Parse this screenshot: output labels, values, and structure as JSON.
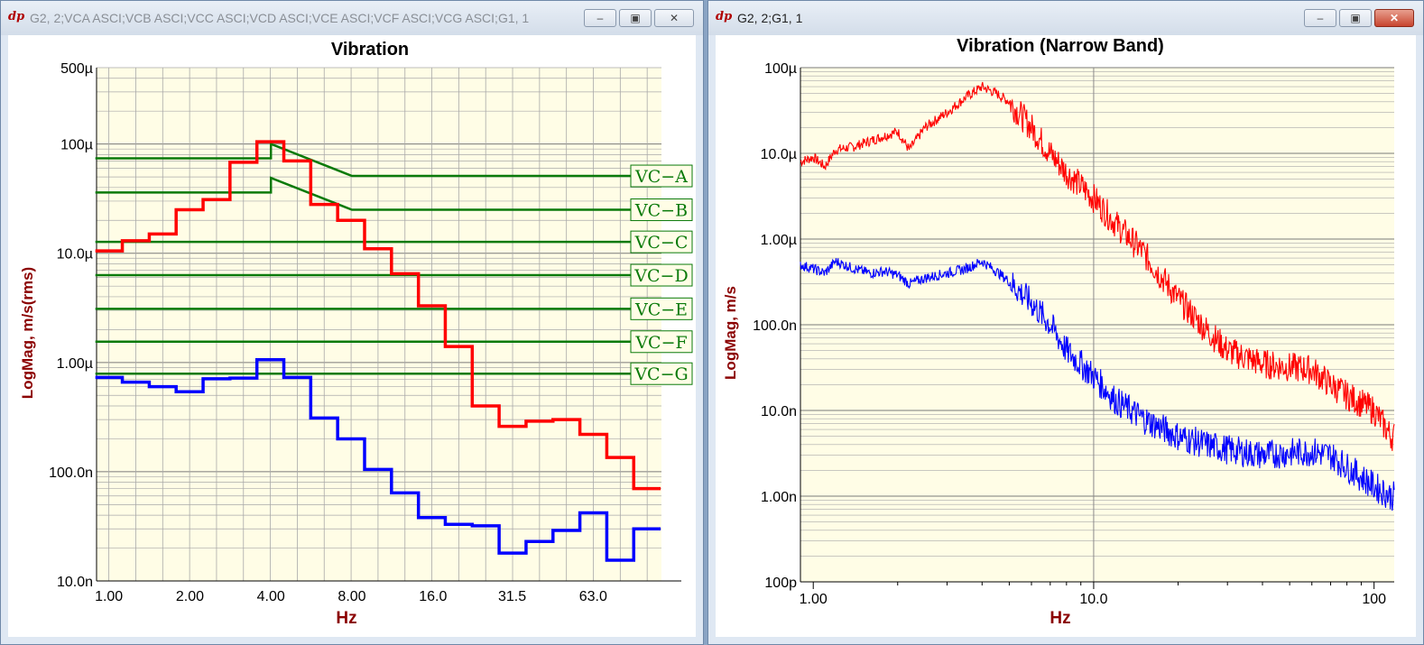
{
  "windows": [
    {
      "title": "G2, 2;VCA ASCI;VCB ASCI;VCC ASCI;VCD ASCI;VCE ASCI;VCF ASCI;VCG ASCI;G1, 1",
      "app_icon": "dp",
      "active": false,
      "buttons": [
        {
          "name": "minimize-button",
          "icon": "minimize-icon",
          "glyph": "–"
        },
        {
          "name": "maximize-button",
          "icon": "maximize-icon",
          "glyph": "▣"
        },
        {
          "name": "close-button",
          "icon": "close-icon",
          "glyph": "✕"
        }
      ]
    },
    {
      "title": "G2, 2;G1, 1",
      "app_icon": "dp",
      "active": true,
      "buttons": [
        {
          "name": "minimize-button",
          "icon": "minimize-icon",
          "glyph": "–"
        },
        {
          "name": "maximize-button",
          "icon": "maximize-icon",
          "glyph": "▣"
        },
        {
          "name": "close-button",
          "icon": "close-icon",
          "glyph": "✕"
        }
      ]
    }
  ],
  "colors": {
    "plot_bg": "#fffde6",
    "grid": "#a9a9a9",
    "label": "#8b0000",
    "red": "#ff0000",
    "blue": "#0000ff",
    "green": "#0a7a0a"
  },
  "chart_data": [
    {
      "type": "line",
      "title": "Vibration",
      "xlabel": "Hz",
      "ylabel": "LogMag, m/s(rms)",
      "xscale": "log2-octave",
      "yscale": "log",
      "ylim": [
        1e-08,
        0.0005
      ],
      "xlim": [
        0.9,
        113
      ],
      "x_tick_labels": [
        "1.00",
        "2.00",
        "4.00",
        "8.00",
        "16.0",
        "31.5",
        "63.0"
      ],
      "x_tick_values": [
        1,
        2,
        4,
        8,
        16,
        31.5,
        63
      ],
      "y_tick_labels": [
        "500µ",
        "100µ",
        "10.0µ",
        "1.00µ",
        "100.0n",
        "10.0n"
      ],
      "y_tick_values": [
        0.0005,
        0.0001,
        1e-05,
        1e-06,
        1e-07,
        1e-08
      ],
      "grid": true,
      "band_edges": [
        0.891,
        1.122,
        1.413,
        1.778,
        2.239,
        2.818,
        3.548,
        4.467,
        5.623,
        7.079,
        8.913,
        11.22,
        14.13,
        17.78,
        22.39,
        28.18,
        35.48,
        44.67,
        56.23,
        70.79,
        89.13,
        112.2
      ],
      "series": [
        {
          "color": "red",
          "values": [
            1.05e-05,
            1.3e-05,
            1.5e-05,
            2.5e-05,
            3.1e-05,
            6.8e-05,
            0.000105,
            7e-05,
            2.8e-05,
            2e-05,
            1.1e-05,
            6.5e-06,
            3.3e-06,
            1.4e-06,
            4e-07,
            2.6e-07,
            2.9e-07,
            3e-07,
            2.2e-07,
            1.35e-07,
            7e-08
          ]
        },
        {
          "color": "blue",
          "values": [
            7.3e-07,
            6.6e-07,
            6e-07,
            5.4e-07,
            7.1e-07,
            7.2e-07,
            1.06e-06,
            7.3e-07,
            3.1e-07,
            2e-07,
            1.05e-07,
            6.4e-08,
            3.8e-08,
            3.3e-08,
            3.2e-08,
            1.8e-08,
            2.3e-08,
            2.9e-08,
            4.2e-08,
            1.55e-08,
            3e-08
          ]
        }
      ],
      "criteria": [
        {
          "label": "VC−A",
          "plateau": 7.4e-05,
          "peak": 0.0001,
          "level": 5.1e-05
        },
        {
          "label": "VC−B",
          "plateau": 3.6e-05,
          "peak": 4.9e-05,
          "level": 2.5e-05
        },
        {
          "label": "VC−C",
          "level": 1.27e-05
        },
        {
          "label": "VC−D",
          "level": 6.3e-06
        },
        {
          "label": "VC−E",
          "level": 3.1e-06
        },
        {
          "label": "VC−F",
          "level": 1.55e-06
        },
        {
          "label": "VC−G",
          "level": 7.9e-07
        }
      ]
    },
    {
      "type": "line",
      "title": "Vibration (Narrow Band)",
      "xlabel": "Hz",
      "ylabel": "LogMag, m/s",
      "xscale": "log",
      "yscale": "log",
      "xlim": [
        0.9,
        118
      ],
      "ylim": [
        1e-10,
        0.0001
      ],
      "x_tick_labels": [
        "1.00",
        "10.0",
        "100"
      ],
      "x_tick_values": [
        1,
        10,
        100
      ],
      "y_tick_labels": [
        "100µ",
        "10.0µ",
        "1.00µ",
        "100.0n",
        "10.0n",
        "1.00n",
        "100p"
      ],
      "y_tick_values": [
        0.0001,
        1e-05,
        1e-06,
        1e-07,
        1e-08,
        1e-09,
        1e-10
      ],
      "grid": true,
      "series": [
        {
          "color": "red",
          "x": [
            0.9,
            1.0,
            1.1,
            1.2,
            1.4,
            1.6,
            1.8,
            2.0,
            2.2,
            2.5,
            3.0,
            3.5,
            4.0,
            4.5,
            5.0,
            6.0,
            7.0,
            8.0,
            10,
            12,
            15,
            20,
            25,
            30,
            40,
            50,
            60,
            70,
            80,
            100,
            115
          ],
          "values": [
            8e-06,
            9e-06,
            7e-06,
            1.1e-05,
            1.2e-05,
            1.4e-05,
            1.6e-05,
            1.8e-05,
            1.1e-05,
            2e-05,
            3e-05,
            4.5e-05,
            6e-05,
            5e-05,
            4e-05,
            2e-05,
            1e-05,
            6e-06,
            3e-06,
            1.5e-06,
            7e-07,
            2e-07,
            9e-08,
            5e-08,
            3.5e-08,
            3.2e-08,
            3e-08,
            2e-08,
            1.5e-08,
            1e-08,
            5e-09
          ]
        },
        {
          "color": "blue",
          "x": [
            0.9,
            1.0,
            1.1,
            1.2,
            1.4,
            1.6,
            1.8,
            2.0,
            2.2,
            2.5,
            3.0,
            3.5,
            4.0,
            4.5,
            5.0,
            6.0,
            7.0,
            8.0,
            10,
            12,
            15,
            20,
            25,
            30,
            40,
            50,
            60,
            70,
            80,
            100,
            115
          ],
          "values": [
            5e-07,
            4.5e-07,
            4e-07,
            5.5e-07,
            4.5e-07,
            4e-07,
            4.2e-07,
            3.8e-07,
            3e-07,
            3.5e-07,
            4e-07,
            4.5e-07,
            5.5e-07,
            4.2e-07,
            3.2e-07,
            1.8e-07,
            1e-07,
            5e-08,
            2.5e-08,
            1.3e-08,
            8e-09,
            5e-09,
            4e-09,
            3.5e-09,
            3e-09,
            3.2e-09,
            3.3e-09,
            3e-09,
            2.2e-09,
            1.3e-09,
            1e-09
          ]
        }
      ]
    }
  ]
}
